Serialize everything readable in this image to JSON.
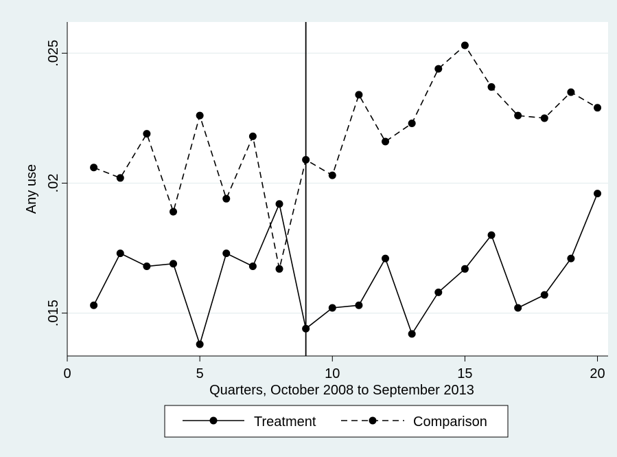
{
  "chart_data": {
    "type": "line",
    "title": "",
    "xlabel": "Quarters, October 2008 to September 2013",
    "ylabel": "Any use",
    "xlim": [
      0,
      20.4
    ],
    "ylim": [
      0.01335,
      0.0262
    ],
    "x_ticks": [
      0,
      5,
      10,
      15,
      20
    ],
    "x_tick_labels": [
      "0",
      "5",
      "10",
      "15",
      "20"
    ],
    "y_ticks": [
      0.015,
      0.02,
      0.025
    ],
    "y_tick_labels": [
      ".015",
      ".02",
      ".025"
    ],
    "grid": "horizontal",
    "reference_line_x": 9,
    "legend_position": "bottom",
    "x": [
      1,
      2,
      3,
      4,
      5,
      6,
      7,
      8,
      9,
      10,
      11,
      12,
      13,
      14,
      15,
      16,
      17,
      18,
      19,
      20
    ],
    "series": [
      {
        "name": "Treatment",
        "line_style": "solid",
        "color": "#000000",
        "values": [
          0.0153,
          0.0173,
          0.0168,
          0.0169,
          0.0138,
          0.0173,
          0.0168,
          0.0192,
          0.0144,
          0.0152,
          0.0153,
          0.0171,
          0.0142,
          0.0158,
          0.0167,
          0.018,
          0.0152,
          0.0157,
          0.0171,
          0.0196
        ]
      },
      {
        "name": "Comparison",
        "line_style": "dashed",
        "color": "#000000",
        "values": [
          0.0206,
          0.0202,
          0.0219,
          0.0189,
          0.0226,
          0.0194,
          0.0218,
          0.0167,
          0.0209,
          0.0203,
          0.0234,
          0.0216,
          0.0223,
          0.0244,
          0.0253,
          0.0237,
          0.0226,
          0.0225,
          0.0235,
          0.0229
        ]
      }
    ]
  }
}
